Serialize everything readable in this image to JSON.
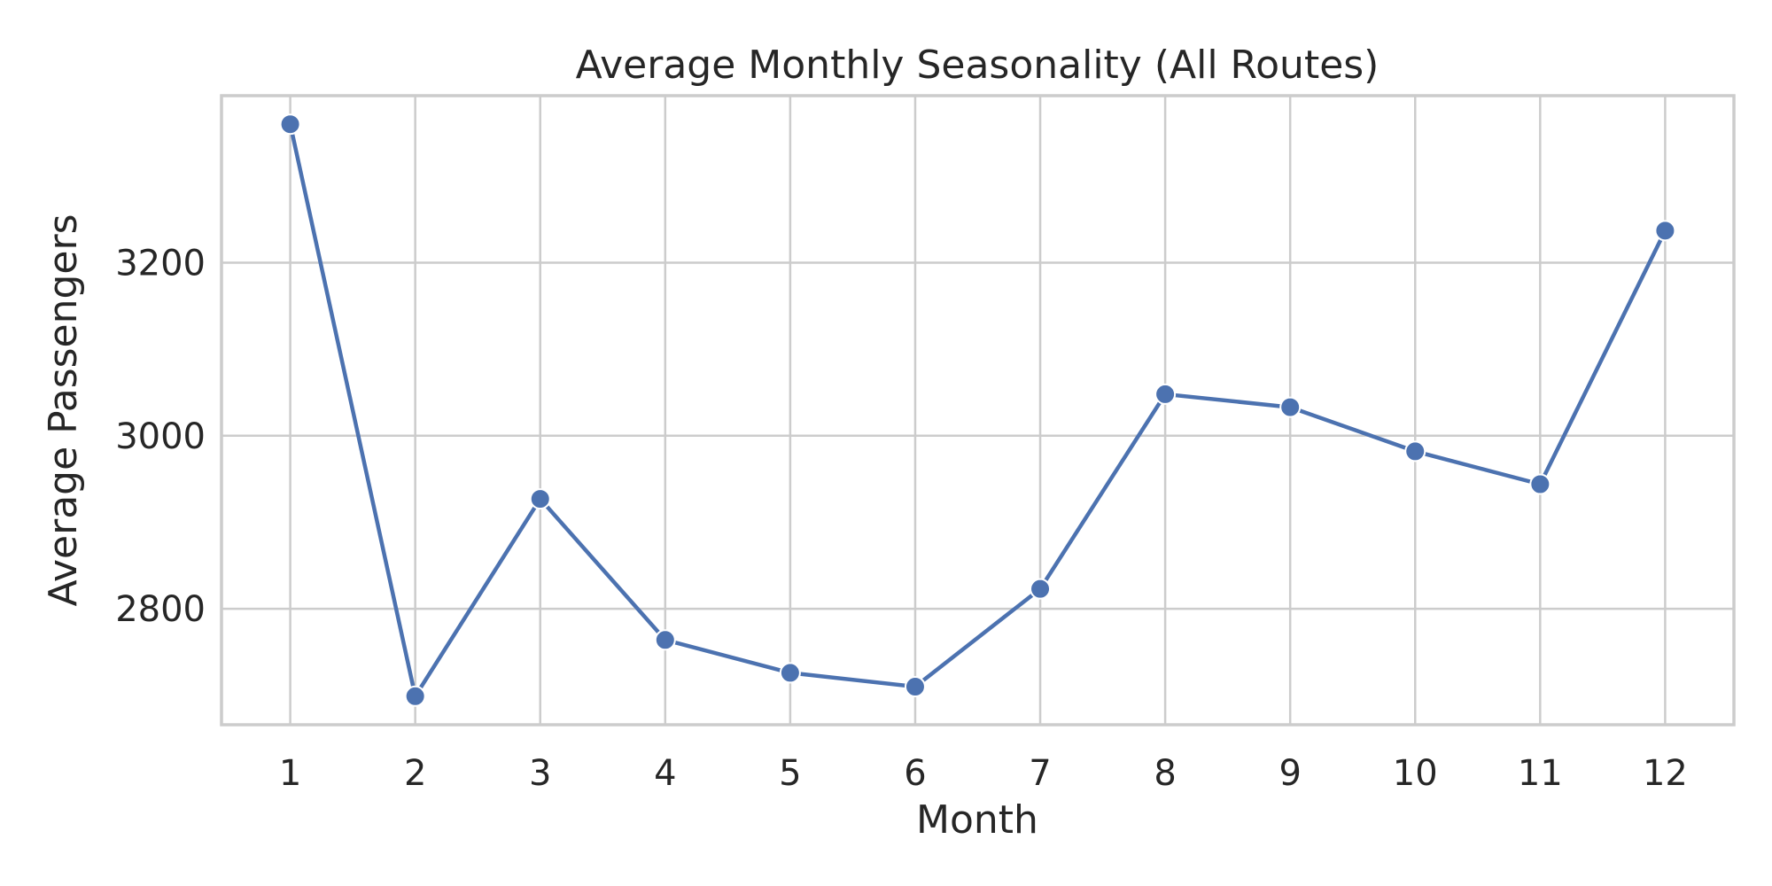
{
  "chart_data": {
    "type": "line",
    "title": "Average Monthly Seasonality (All Routes)",
    "xlabel": "Month",
    "ylabel": "Average Passengers",
    "x": [
      1,
      2,
      3,
      4,
      5,
      6,
      7,
      8,
      9,
      10,
      11,
      12
    ],
    "series": [
      {
        "values": [
          3360,
          2699,
          2927,
          2764,
          2726,
          2710,
          2823,
          3048,
          3033,
          2982,
          2944,
          3237
        ],
        "color": "#4c72b0"
      }
    ],
    "xticks": [
      "1",
      "2",
      "3",
      "4",
      "5",
      "6",
      "7",
      "8",
      "9",
      "10",
      "11",
      "12"
    ],
    "yticks": [
      2800,
      3000,
      3200
    ],
    "xlim": [
      0.45,
      12.55
    ],
    "ylim": [
      2666,
      3393
    ],
    "grid": true,
    "legend": "none"
  }
}
